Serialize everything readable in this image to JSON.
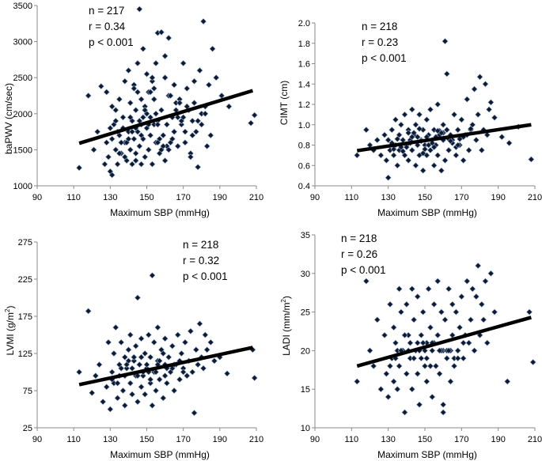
{
  "chart_data": [
    {
      "type": "scatter",
      "panel": "top-left",
      "xlabel": "Maximum SBP (mmHg)",
      "ylabel": "baPWV (cm/sec)",
      "xlim": [
        90,
        210
      ],
      "ylim": [
        1000,
        3500
      ],
      "xticks": [
        90,
        110,
        130,
        150,
        170,
        190,
        210
      ],
      "yticks": [
        1000,
        1500,
        2000,
        2500,
        3000,
        3500
      ],
      "annotations": [
        "n = 217",
        "r = 0.34",
        "p < 0.001"
      ],
      "trend": [
        [
          113,
          1590
        ],
        [
          208,
          2320
        ]
      ],
      "x": [
        113,
        118,
        121,
        123,
        125,
        127,
        128,
        129,
        130,
        131,
        131,
        132,
        133,
        133,
        134,
        135,
        135,
        136,
        137,
        138,
        138,
        139,
        140,
        140,
        141,
        141,
        142,
        142,
        143,
        143,
        144,
        144,
        145,
        145,
        146,
        146,
        147,
        147,
        147,
        148,
        148,
        149,
        149,
        150,
        150,
        151,
        151,
        152,
        152,
        153,
        153,
        154,
        154,
        155,
        155,
        156,
        156,
        157,
        158,
        158,
        159,
        160,
        160,
        161,
        162,
        162,
        163,
        164,
        165,
        165,
        166,
        167,
        168,
        169,
        170,
        171,
        172,
        173,
        174,
        175,
        176,
        177,
        178,
        179,
        180,
        181,
        182,
        183,
        184,
        185,
        186,
        188,
        191,
        195,
        207,
        209,
        146,
        152,
        160,
        180,
        128,
        134,
        139,
        143,
        148,
        156,
        161,
        166,
        171,
        176,
        131,
        137,
        144,
        150,
        157,
        163,
        169,
        174,
        182,
        136,
        142,
        149,
        154,
        158,
        164,
        170,
        178,
        130,
        135,
        141,
        147,
        153,
        159,
        165,
        172,
        140,
        145,
        151,
        155,
        162,
        168,
        175,
        133,
        138,
        144,
        149,
        156,
        167
      ],
      "y": [
        1250,
        2250,
        1500,
        1750,
        2380,
        1300,
        1600,
        1400,
        1200,
        1150,
        1650,
        1850,
        1500,
        2050,
        1300,
        1700,
        2200,
        1450,
        1950,
        1600,
        2450,
        1350,
        1750,
        2600,
        1500,
        2150,
        1300,
        1900,
        1650,
        2400,
        1450,
        2050,
        1750,
        2700,
        1550,
        3450,
        1300,
        2200,
        1850,
        1650,
        2900,
        1400,
        2100,
        1800,
        2550,
        1500,
        2300,
        1700,
        1950,
        2450,
        1300,
        1850,
        2200,
        1600,
        2700,
        1900,
        3120,
        1450,
        2050,
        3130,
        1700,
        1350,
        2500,
        1850,
        2250,
        3050,
        1600,
        1950,
        2400,
        1750,
        2050,
        1550,
        2200,
        1850,
        2700,
        1600,
        2350,
        2050,
        1450,
        1900,
        2150,
        1750,
        1260,
        2600,
        1850,
        3280,
        2100,
        1550,
        2400,
        1700,
        2900,
        2500,
        2250,
        2100,
        1870,
        1980,
        1900,
        2300,
        2800,
        2000,
        2300,
        1750,
        1600,
        2350,
        1950,
        1850,
        1550,
        2150,
        1750,
        2450,
        2100,
        1800,
        1350,
        2000,
        1650,
        2250,
        1900,
        1400,
        2000,
        1600,
        1750,
        2050,
        2350,
        1500,
        1650,
        1950,
        1900,
        1800,
        1450,
        1950,
        1700,
        2500,
        1550,
        1750,
        2100,
        1650,
        2300,
        1850,
        2000,
        1500,
        2150,
        1700,
        1900,
        1400,
        1800,
        2050,
        1600,
        1950
      ],
      "tick_labels_x": [
        "90",
        "110",
        "130",
        "150",
        "170",
        "190",
        "210"
      ],
      "tick_labels_y": [
        "1000",
        "1500",
        "2000",
        "2500",
        "3000",
        "3500"
      ]
    },
    {
      "type": "scatter",
      "panel": "top-right",
      "xlabel": "Maximum SBP (mmHg)",
      "ylabel": "CIMT (cm)",
      "xlim": [
        90,
        210
      ],
      "ylim": [
        0.4,
        2.0
      ],
      "xticks": [
        90,
        110,
        130,
        150,
        170,
        190,
        210
      ],
      "yticks": [
        0.4,
        0.6,
        0.8,
        1.0,
        1.2,
        1.4,
        1.6,
        1.8,
        2.0
      ],
      "annotations": [
        "n = 218",
        "r = 0.23",
        "p < 0.001"
      ],
      "trend": [
        [
          113,
          0.745
        ],
        [
          208,
          1.0
        ]
      ],
      "x": [
        113,
        118,
        120,
        122,
        124,
        126,
        128,
        129,
        130,
        130,
        131,
        132,
        133,
        134,
        134,
        135,
        136,
        136,
        137,
        138,
        139,
        139,
        140,
        141,
        141,
        142,
        143,
        143,
        144,
        145,
        145,
        146,
        147,
        147,
        148,
        149,
        149,
        150,
        151,
        151,
        152,
        153,
        153,
        154,
        155,
        155,
        156,
        157,
        157,
        158,
        159,
        160,
        160,
        161,
        162,
        162,
        163,
        164,
        165,
        166,
        167,
        168,
        169,
        170,
        171,
        172,
        173,
        174,
        175,
        176,
        177,
        178,
        179,
        180,
        181,
        182,
        183,
        184,
        185,
        186,
        188,
        192,
        196,
        201,
        208,
        161,
        132,
        137,
        141,
        146,
        150,
        154,
        158,
        163,
        167,
        171,
        175,
        135,
        140,
        144,
        148,
        152,
        156,
        160,
        165,
        169,
        173,
        138,
        142,
        147,
        151,
        155,
        159,
        164,
        168,
        133,
        143,
        149,
        157
      ],
      "y": [
        0.7,
        0.95,
        0.8,
        0.75,
        0.85,
        0.7,
        0.9,
        0.65,
        0.48,
        0.85,
        0.75,
        0.95,
        0.7,
        1.05,
        0.8,
        0.6,
        0.9,
        0.75,
        1.0,
        0.85,
        0.7,
        1.1,
        0.8,
        0.95,
        0.65,
        0.85,
        1.15,
        0.75,
        0.9,
        0.6,
        1.0,
        0.8,
        1.1,
        0.7,
        0.85,
        0.95,
        0.55,
        0.8,
        1.05,
        0.7,
        0.9,
        0.75,
        1.15,
        0.85,
        0.6,
        0.95,
        0.8,
        1.2,
        0.7,
        0.9,
        0.55,
        0.85,
        1.0,
        0.65,
        0.95,
        1.5,
        0.75,
        0.9,
        0.85,
        1.1,
        0.7,
        0.95,
        0.8,
        1.05,
        0.65,
        0.9,
        1.25,
        0.75,
        0.95,
        1.0,
        1.35,
        0.85,
        1.1,
        1.47,
        0.75,
        0.95,
        1.4,
        0.9,
        1.15,
        1.22,
        1.07,
        0.88,
        0.82,
        0.98,
        0.66,
        1.82,
        0.82,
        0.78,
        0.92,
        0.88,
        0.76,
        0.82,
        0.94,
        0.86,
        0.78,
        0.88,
        0.96,
        0.86,
        0.78,
        0.92,
        0.84,
        0.8,
        0.88,
        0.92,
        0.82,
        0.86,
        0.9,
        0.74,
        0.82,
        0.96,
        0.88,
        0.78,
        0.92,
        0.84,
        0.8,
        0.76,
        0.88,
        0.72,
        0.94
      ],
      "tick_labels_x": [
        "90",
        "110",
        "130",
        "150",
        "170",
        "190",
        "210"
      ],
      "tick_labels_y": [
        "0.4",
        "0.6",
        "0.8",
        "1.0",
        "1.2",
        "1.4",
        "1.6",
        "1.8",
        "2.0"
      ]
    },
    {
      "type": "scatter",
      "panel": "bottom-left",
      "xlabel": "Maximum SBP (mmHg)",
      "ylabel": "LVMI (g/m²)",
      "ylabel_main": "LVMI (g/m",
      "ylabel_sup": "2",
      "ylabel_end": ")",
      "xlim": [
        90,
        210
      ],
      "ylim": [
        25,
        275
      ],
      "xticks": [
        90,
        110,
        130,
        150,
        170,
        190,
        210
      ],
      "yticks": [
        25,
        75,
        125,
        175,
        225,
        275
      ],
      "annotations": [
        "n = 218",
        "r = 0.32",
        "p < 0.001"
      ],
      "trend": [
        [
          113,
          83
        ],
        [
          208,
          133
        ]
      ],
      "x": [
        113,
        118,
        120,
        122,
        124,
        126,
        128,
        129,
        130,
        131,
        132,
        132,
        133,
        134,
        135,
        135,
        136,
        137,
        138,
        138,
        139,
        140,
        141,
        141,
        142,
        143,
        144,
        144,
        145,
        145,
        146,
        147,
        147,
        148,
        149,
        149,
        150,
        151,
        152,
        152,
        153,
        154,
        154,
        155,
        156,
        156,
        157,
        158,
        159,
        160,
        160,
        161,
        162,
        163,
        164,
        165,
        166,
        167,
        168,
        169,
        170,
        171,
        172,
        173,
        174,
        175,
        176,
        177,
        178,
        179,
        180,
        181,
        182,
        183,
        185,
        187,
        190,
        194,
        208,
        209,
        153,
        131,
        136,
        140,
        145,
        150,
        155,
        159,
        164,
        168,
        172,
        134,
        139,
        143,
        148,
        152,
        157,
        161,
        166,
        170,
        138,
        142,
        147,
        151,
        156,
        160,
        165
      ],
      "y": [
        100,
        182,
        72,
        95,
        110,
        60,
        80,
        140,
        50,
        100,
        125,
        85,
        160,
        65,
        110,
        95,
        140,
        75,
        120,
        55,
        105,
        130,
        85,
        150,
        70,
        115,
        95,
        135,
        60,
        200,
        110,
        80,
        145,
        95,
        125,
        70,
        105,
        150,
        85,
        120,
        55,
        100,
        140,
        75,
        115,
        160,
        90,
        130,
        65,
        110,
        145,
        85,
        120,
        100,
        135,
        75,
        110,
        150,
        90,
        125,
        105,
        140,
        95,
        115,
        155,
        100,
        45,
        130,
        110,
        165,
        120,
        105,
        150,
        130,
        140,
        115,
        120,
        98,
        130,
        92,
        230,
        90,
        105,
        115,
        95,
        110,
        100,
        125,
        105,
        115,
        95,
        85,
        110,
        120,
        100,
        90,
        115,
        105,
        110,
        100,
        95,
        105,
        120,
        100,
        110,
        95,
        110
      ],
      "tick_labels_x": [
        "90",
        "110",
        "130",
        "150",
        "170",
        "190",
        "210"
      ],
      "tick_labels_y": [
        "25",
        "75",
        "125",
        "175",
        "225",
        "275"
      ]
    },
    {
      "type": "scatter",
      "panel": "bottom-right",
      "xlabel": "Maximum SBP (mmHg)",
      "ylabel": "LADI (mm/m²)",
      "ylabel_main": "LADI (mm/m",
      "ylabel_sup": "2",
      "ylabel_end": ")",
      "xlim": [
        90,
        210
      ],
      "ylim": [
        10,
        35
      ],
      "xticks": [
        90,
        110,
        130,
        150,
        170,
        190,
        210
      ],
      "yticks": [
        10,
        15,
        20,
        25,
        30,
        35
      ],
      "annotations": [
        "n = 218",
        "r = 0.26",
        "p < 0.001"
      ],
      "trend": [
        [
          113,
          18.0
        ],
        [
          208,
          24.3
        ]
      ],
      "x": [
        113,
        118,
        120,
        122,
        124,
        126,
        128,
        129,
        130,
        131,
        132,
        133,
        133,
        134,
        135,
        136,
        136,
        137,
        138,
        139,
        140,
        140,
        141,
        142,
        143,
        143,
        144,
        145,
        146,
        146,
        147,
        148,
        148,
        149,
        150,
        151,
        151,
        152,
        153,
        154,
        154,
        155,
        156,
        157,
        157,
        158,
        159,
        160,
        160,
        161,
        162,
        163,
        164,
        165,
        165,
        166,
        167,
        168,
        169,
        170,
        171,
        172,
        173,
        174,
        175,
        176,
        177,
        178,
        179,
        180,
        181,
        182,
        183,
        184,
        186,
        188,
        195,
        207,
        209,
        160,
        131,
        135,
        139,
        144,
        149,
        153,
        157,
        162,
        166,
        171,
        134,
        138,
        142,
        147,
        151,
        155,
        159,
        164,
        168,
        137,
        141,
        146,
        150,
        154,
        158,
        163
      ],
      "y": [
        16,
        29,
        20,
        18,
        24,
        15,
        22,
        17,
        14,
        26,
        19,
        16,
        23,
        21,
        15,
        28,
        18,
        25,
        20,
        12,
        17,
        26,
        22,
        19,
        28,
        15,
        24,
        20,
        17,
        27,
        13,
        22,
        19,
        25,
        18,
        21,
        16,
        28,
        23,
        20,
        14,
        26,
        18,
        22,
        29,
        17,
        25,
        20,
        13,
        24,
        19,
        28,
        16,
        22,
        26,
        18,
        25,
        20,
        23,
        27,
        19,
        22,
        29,
        21,
        24,
        28,
        20,
        27,
        31,
        22,
        26,
        24,
        29,
        21,
        30,
        25,
        16,
        25,
        18.5,
        12,
        18,
        20,
        22,
        19,
        21,
        18,
        22,
        20,
        19,
        21,
        19,
        20,
        21,
        20,
        19,
        21,
        20,
        20,
        19,
        20,
        20,
        21,
        20,
        21,
        20,
        20
      ],
      "tick_labels_x": [
        "90",
        "110",
        "130",
        "150",
        "170",
        "190",
        "210"
      ],
      "tick_labels_y": [
        "10",
        "15",
        "20",
        "25",
        "30",
        "35"
      ]
    }
  ]
}
